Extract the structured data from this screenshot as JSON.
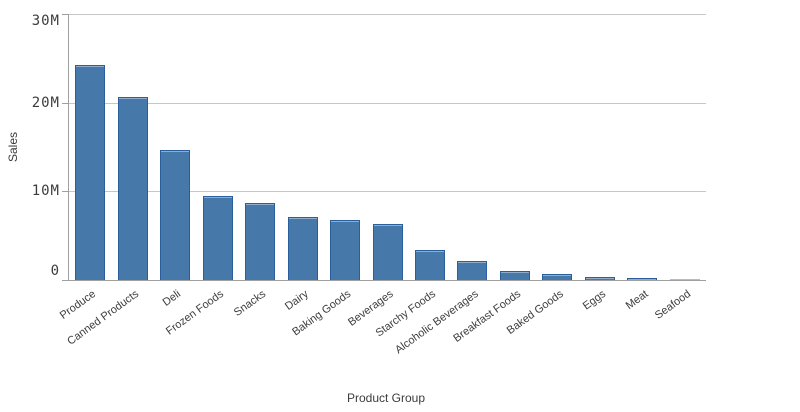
{
  "chart_data": {
    "type": "bar",
    "title": "",
    "xlabel": "Product Group",
    "ylabel": "Sales",
    "categories": [
      "Produce",
      "Canned Products",
      "Deli",
      "Frozen Foods",
      "Snacks",
      "Dairy",
      "Baking Goods",
      "Beverages",
      "Starchy Foods",
      "Alcoholic Beverages",
      "Breakfast Foods",
      "Baked Goods",
      "Eggs",
      "Meat",
      "Seafood"
    ],
    "values": [
      24200000,
      20600000,
      14700000,
      9500000,
      8700000,
      7100000,
      6800000,
      6300000,
      3400000,
      2200000,
      1000000,
      700000,
      400000,
      200000,
      150000
    ],
    "y_axis": {
      "min": 0,
      "max": 30000000,
      "ticks": [
        {
          "value": 0,
          "label": "0"
        },
        {
          "value": 10000000,
          "label": "10M"
        },
        {
          "value": 20000000,
          "label": "20M"
        },
        {
          "value": 30000000,
          "label": "30M"
        }
      ]
    },
    "grid": "horizontal",
    "legend_position": "none",
    "colors": {
      "bar_fill": "#4778aa",
      "bar_border": "#2a5f9e",
      "axis_line": "#9f9f9f",
      "grid_line": "#c6c6c6",
      "text": "#3c3c3c"
    },
    "bar_overrides": [
      {
        "index": 14,
        "fill": "#c3d4e4",
        "border": "#a6c0d9"
      }
    ]
  }
}
